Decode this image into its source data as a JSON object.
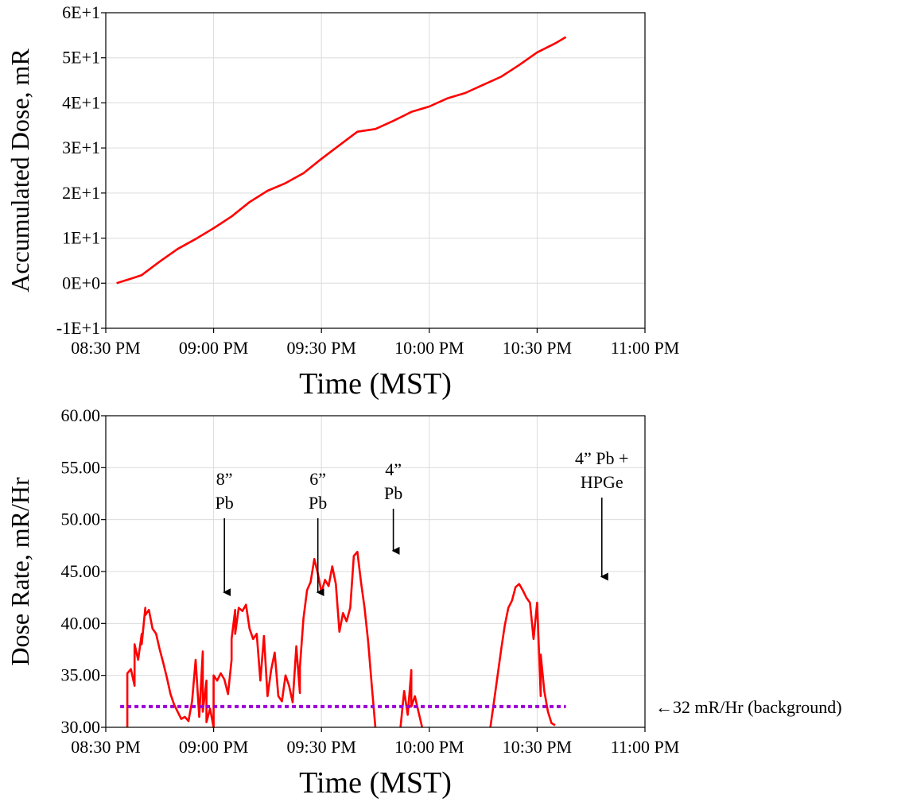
{
  "chart_data": [
    {
      "type": "line",
      "title": "",
      "xlabel": "Time (MST)",
      "ylabel": "Accumulated Dose, mR",
      "x_ticks": [
        "08:30 PM",
        "09:00 PM",
        "09:30 PM",
        "10:00 PM",
        "10:30 PM",
        "11:00 PM"
      ],
      "y_ticks": [
        "-1E+1",
        "0E+0",
        "1E+1",
        "2E+1",
        "3E+1",
        "4E+1",
        "5E+1",
        "6E+1"
      ],
      "xlim": [
        "08:30 PM",
        "11:00 PM"
      ],
      "ylim": [
        -10,
        60
      ],
      "grid": true,
      "series": [
        {
          "color": "#ff0000",
          "x": [
            "08:33 PM",
            "08:37 PM",
            "08:40 PM",
            "08:45 PM",
            "08:50 PM",
            "08:55 PM",
            "09:00 PM",
            "09:05 PM",
            "09:10 PM",
            "09:15 PM",
            "09:20 PM",
            "09:25 PM",
            "09:30 PM",
            "09:35 PM",
            "09:40 PM",
            "09:45 PM",
            "09:50 PM",
            "09:55 PM",
            "10:00 PM",
            "10:05 PM",
            "10:10 PM",
            "10:15 PM",
            "10:20 PM",
            "10:25 PM",
            "10:30 PM",
            "10:35 PM",
            "10:38 PM"
          ],
          "y": [
            0.0,
            1.0,
            1.8,
            4.8,
            7.6,
            9.8,
            12.2,
            14.8,
            18.0,
            20.5,
            22.2,
            24.4,
            27.6,
            30.6,
            33.6,
            34.2,
            36.0,
            38.0,
            39.2,
            41.0,
            42.2,
            44.0,
            45.8,
            48.4,
            51.2,
            53.2,
            54.6
          ]
        }
      ]
    },
    {
      "type": "line",
      "title": "",
      "xlabel": "Time (MST)",
      "ylabel": "Dose Rate, mR/Hr",
      "x_ticks": [
        "08:30 PM",
        "09:00 PM",
        "09:30 PM",
        "10:00 PM",
        "10:30 PM",
        "11:00 PM"
      ],
      "y_ticks": [
        "30.00",
        "35.00",
        "40.00",
        "45.00",
        "50.00",
        "55.00",
        "60.00"
      ],
      "xlim": [
        "08:30 PM",
        "11:00 PM"
      ],
      "ylim": [
        30,
        60
      ],
      "grid": true,
      "series": [
        {
          "color": "#ff0000",
          "segments": [
            {
              "x": [
                "08:36 PM",
                "08:36 PM",
                "08:37 PM",
                "08:38 PM",
                "08:38 PM",
                "08:39 PM",
                "08:40 PM",
                "08:40 PM",
                "08:41 PM",
                "08:41 PM",
                "08:42 PM",
                "08:43 PM",
                "08:44 PM",
                "08:45 PM",
                "08:46 PM",
                "08:47 PM",
                "08:48 PM",
                "08:49 PM",
                "08:50 PM",
                "08:51 PM",
                "08:52 PM",
                "08:53 PM",
                "08:54 PM",
                "08:55 PM",
                "08:56 PM",
                "08:57 PM",
                "08:57 PM",
                "08:58 PM",
                "08:58 PM",
                "08:59 PM",
                "09:00 PM",
                "09:00 PM",
                "09:01 PM",
                "09:02 PM",
                "09:03 PM",
                "09:04 PM",
                "09:05 PM",
                "09:05 PM",
                "09:06 PM",
                "09:06 PM",
                "09:07 PM",
                "09:08 PM",
                "09:09 PM",
                "09:10 PM",
                "09:11 PM",
                "09:12 PM",
                "09:13 PM",
                "09:14 PM",
                "09:15 PM",
                "09:16 PM",
                "09:17 PM",
                "09:18 PM",
                "09:19 PM",
                "09:20 PM",
                "09:21 PM",
                "09:22 PM",
                "09:23 PM",
                "09:24 PM",
                "09:24 PM",
                "09:25 PM",
                "09:26 PM",
                "09:27 PM",
                "09:28 PM",
                "09:29 PM",
                "09:30 PM",
                "09:31 PM",
                "09:32 PM",
                "09:33 PM",
                "09:34 PM",
                "09:35 PM",
                "09:36 PM",
                "09:37 PM",
                "09:38 PM",
                "09:39 PM",
                "09:40 PM",
                "09:41 PM",
                "09:42 PM",
                "09:43 PM",
                "09:44 PM",
                "09:45 PM"
              ],
              "y": [
                30.0,
                35.2,
                35.6,
                34.0,
                38.0,
                36.5,
                39.0,
                38.0,
                41.5,
                40.8,
                41.3,
                39.5,
                39.0,
                37.5,
                36.2,
                34.8,
                33.2,
                32.2,
                31.5,
                30.8,
                31.0,
                30.6,
                32.5,
                36.5,
                31.0,
                37.3,
                31.5,
                34.5,
                30.5,
                31.8,
                30.0,
                35.0,
                34.5,
                35.2,
                34.6,
                33.2,
                36.5,
                38.5,
                41.3,
                39.0,
                41.5,
                41.2,
                41.8,
                39.5,
                38.5,
                39.0,
                34.5,
                38.8,
                33.0,
                35.5,
                37.2,
                33.0,
                32.5,
                35.0,
                34.0,
                32.4,
                37.8,
                33.3,
                35.8,
                40.5,
                43.2,
                44.0,
                46.2,
                44.8,
                43.0,
                44.2,
                43.6,
                45.5,
                43.8,
                39.2,
                41.0,
                40.2,
                41.5,
                46.5,
                46.9,
                44.0,
                41.5,
                38.2,
                34.0,
                30.0
              ]
            },
            {
              "x": [
                "09:52 PM",
                "09:53 PM",
                "09:54 PM",
                "09:55 PM",
                "09:55 PM",
                "09:56 PM",
                "09:57 PM",
                "09:58 PM"
              ],
              "y": [
                30.0,
                33.5,
                31.2,
                35.5,
                32.0,
                33.0,
                31.5,
                30.0
              ]
            },
            {
              "x": [
                "10:17 PM",
                "10:18 PM",
                "10:19 PM",
                "10:20 PM",
                "10:21 PM",
                "10:22 PM",
                "10:23 PM",
                "10:24 PM",
                "10:25 PM",
                "10:26 PM",
                "10:27 PM",
                "10:28 PM",
                "10:29 PM",
                "10:30 PM",
                "10:31 PM",
                "10:31 PM",
                "10:32 PM",
                "10:33 PM",
                "10:34 PM",
                "10:35 PM"
              ],
              "y": [
                30.0,
                32.5,
                35.0,
                37.5,
                39.8,
                41.5,
                42.2,
                43.5,
                43.8,
                43.2,
                42.5,
                42.0,
                38.5,
                42.0,
                33.0,
                37.0,
                33.5,
                31.5,
                30.4,
                30.2
              ]
            }
          ]
        },
        {
          "color": "#9b00d6",
          "style": "dotted",
          "x": [
            "08:34 PM",
            "10:38 PM"
          ],
          "y": [
            32,
            32
          ]
        }
      ],
      "annotations": [
        {
          "lines": [
            "8”",
            "Pb"
          ],
          "arrow_x": "09:03 PM",
          "arrow_tip_y": 43
        },
        {
          "lines": [
            "6”",
            "Pb"
          ],
          "arrow_x": "09:29 PM",
          "arrow_tip_y": 43
        },
        {
          "lines": [
            "4”",
            "Pb"
          ],
          "arrow_x": "09:50 PM",
          "arrow_tip_y": 47
        },
        {
          "lines": [
            "4” Pb +",
            "HPGe"
          ],
          "arrow_x": "10:48 PM",
          "arrow_tip_y": 44.5
        }
      ],
      "background_label": "←32 mR/Hr (background)"
    }
  ]
}
